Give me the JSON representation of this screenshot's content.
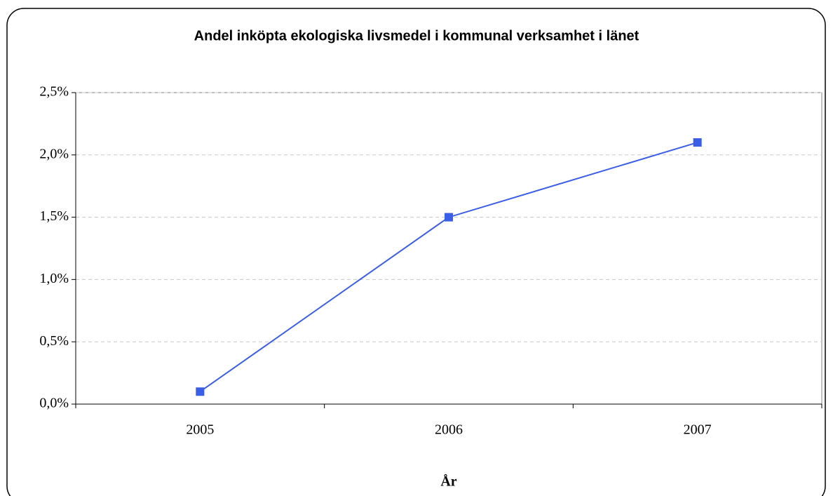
{
  "chart_data": {
    "type": "line",
    "title": "Andel inköpta ekologiska livsmedel i kommunal verksamhet i länet",
    "x_label": "År",
    "categories": [
      "2005",
      "2006",
      "2007"
    ],
    "values": [
      0.1,
      1.5,
      2.1
    ],
    "color": "#3b5ee6",
    "ylim": [
      0,
      2.5
    ],
    "yticks": [
      {
        "value": 0,
        "label": "0,0%"
      },
      {
        "value": 0.5,
        "label": "0,5%"
      },
      {
        "value": 1,
        "label": "1,0%"
      },
      {
        "value": 1.5,
        "label": "1,5%"
      },
      {
        "value": 2,
        "label": "2,0%"
      },
      {
        "value": 2.5,
        "label": "2,5%"
      }
    ],
    "grid": true
  }
}
